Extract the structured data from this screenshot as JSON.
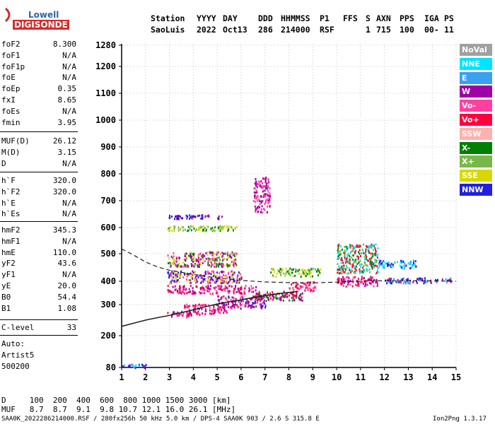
{
  "logo": {
    "line1": "Lowell",
    "line2": "DIGISONDE"
  },
  "header": {
    "labels": [
      "Station",
      "YYYY",
      "DAY",
      "DDD",
      "HHMMSS",
      "P1",
      "FFS",
      "S",
      "AXN",
      "PPS",
      "IGA",
      "PS"
    ],
    "values": [
      "SaoLuis",
      "2022",
      "Oct13",
      "286",
      "214000",
      "RSF",
      "",
      "1",
      "715",
      "100",
      "00-",
      "11"
    ]
  },
  "params": {
    "group1": [
      {
        "name": "foF2",
        "value": "8.300"
      },
      {
        "name": "foF1",
        "value": "N/A"
      },
      {
        "name": "foF1p",
        "value": "N/A"
      },
      {
        "name": "foE",
        "value": "N/A"
      },
      {
        "name": "foEp",
        "value": "0.35"
      },
      {
        "name": "fxI",
        "value": "8.65"
      },
      {
        "name": "foEs",
        "value": "N/A"
      },
      {
        "name": "fmin",
        "value": "3.95"
      }
    ],
    "group2": [
      {
        "name": "MUF(D)",
        "value": "26.12"
      },
      {
        "name": "M(D)",
        "value": "3.15"
      },
      {
        "name": "D",
        "value": "N/A"
      }
    ],
    "group3": [
      {
        "name": "h`F",
        "value": "320.0"
      },
      {
        "name": "h`F2",
        "value": "320.0"
      },
      {
        "name": "h`E",
        "value": "N/A"
      },
      {
        "name": "h`Es",
        "value": "N/A"
      }
    ],
    "group4": [
      {
        "name": "hmF2",
        "value": "345.3"
      },
      {
        "name": "hmF1",
        "value": "N/A"
      },
      {
        "name": "hmE",
        "value": "110.0"
      },
      {
        "name": "yF2",
        "value": "43.6"
      },
      {
        "name": "yF1",
        "value": "N/A"
      },
      {
        "name": "yE",
        "value": "20.0"
      },
      {
        "name": "B0",
        "value": "54.4"
      },
      {
        "name": "B1",
        "value": "1.08"
      }
    ],
    "clevel": {
      "name": "C-level",
      "value": "33"
    },
    "scaling": [
      "Auto:",
      "Artist5",
      "500200"
    ]
  },
  "legend": [
    {
      "label": "NoVal",
      "color": "#a0a0a0"
    },
    {
      "label": "NNE",
      "color": "#00e5ff"
    },
    {
      "label": "E",
      "color": "#3aa0f0"
    },
    {
      "label": "W",
      "color": "#a000a8"
    },
    {
      "label": "Vo-",
      "color": "#ff40a0"
    },
    {
      "label": "Vo+",
      "color": "#ff0040"
    },
    {
      "label": "SSW",
      "color": "#ffb0b0"
    },
    {
      "label": "X-",
      "color": "#008000"
    },
    {
      "label": "X+",
      "color": "#78b848"
    },
    {
      "label": "SSE",
      "color": "#d8d800"
    },
    {
      "label": "NNW",
      "color": "#2020e0"
    }
  ],
  "chart_data": {
    "type": "scatter",
    "xlim": [
      1,
      15
    ],
    "x_ticks": [
      1,
      2,
      3,
      4,
      5,
      6,
      7,
      8,
      9,
      10,
      11,
      12,
      13,
      14,
      15
    ],
    "y_scale": "nonlinear (higher resolution below 500 km)",
    "y_ticks": [
      80,
      200,
      300,
      400,
      500,
      600,
      700,
      800,
      900,
      1000,
      1100,
      1200,
      1280
    ],
    "grid": "dotted",
    "traces": {
      "x_trace": [
        [
          1.0,
          230
        ],
        [
          1.5,
          240
        ],
        [
          2.0,
          250
        ],
        [
          2.5,
          258
        ],
        [
          3.0,
          265
        ],
        [
          3.5,
          274
        ],
        [
          4.0,
          283
        ],
        [
          4.5,
          293
        ],
        [
          5.0,
          302
        ],
        [
          5.5,
          312
        ],
        [
          6.0,
          320
        ],
        [
          6.5,
          330
        ],
        [
          7.0,
          338
        ],
        [
          7.5,
          346
        ],
        [
          8.0,
          352
        ],
        [
          8.4,
          356
        ]
      ],
      "dashed_trace": [
        [
          1.0,
          518
        ],
        [
          1.5,
          495
        ],
        [
          2.0,
          470
        ],
        [
          2.5,
          452
        ],
        [
          3.0,
          440
        ],
        [
          4.0,
          425
        ],
        [
          5.0,
          412
        ],
        [
          6.0,
          403
        ],
        [
          7.0,
          397
        ],
        [
          8.0,
          394
        ],
        [
          9.0,
          393
        ],
        [
          10.0,
          396
        ],
        [
          11.0,
          400
        ],
        [
          12.0,
          402
        ],
        [
          13.0,
          402
        ],
        [
          14.0,
          401
        ],
        [
          15.0,
          400
        ]
      ]
    },
    "echo_clusters": [
      {
        "x": [
          2.9,
          3.9
        ],
        "y": [
          262,
          282
        ],
        "palette": [
          "#ff0040",
          "#ff40a0",
          "#a000a8"
        ]
      },
      {
        "x": [
          3.6,
          5.4
        ],
        "y": [
          270,
          305
        ],
        "palette": [
          "#ff0040",
          "#a000a8",
          "#ff40a0"
        ]
      },
      {
        "x": [
          5.0,
          7.0
        ],
        "y": [
          290,
          340
        ],
        "palette": [
          "#ff0040",
          "#a000a8",
          "#ff40a0",
          "#2020e0"
        ]
      },
      {
        "x": [
          6.5,
          8.6
        ],
        "y": [
          320,
          360
        ],
        "palette": [
          "#ff0040",
          "#a000a8",
          "#008000"
        ]
      },
      {
        "x": [
          2.9,
          6.6
        ],
        "y": [
          350,
          385
        ],
        "palette": [
          "#ff0040",
          "#ff40a0",
          "#a000a8"
        ]
      },
      {
        "x": [
          2.9,
          6.0
        ],
        "y": [
          395,
          440
        ],
        "palette": [
          "#a000a8",
          "#2020e0",
          "#ff40a0",
          "#d8d800"
        ]
      },
      {
        "x": [
          2.9,
          5.8
        ],
        "y": [
          455,
          510
        ],
        "palette": [
          "#a000a8",
          "#d8d800",
          "#ff40a0",
          "#008000"
        ]
      },
      {
        "x": [
          2.9,
          5.8
        ],
        "y": [
          590,
          610
        ],
        "palette": [
          "#d8d800",
          "#008000",
          "#78b848"
        ]
      },
      {
        "x": [
          2.9,
          5.3
        ],
        "y": [
          635,
          650
        ],
        "palette": [
          "#a000a8",
          "#2020e0"
        ]
      },
      {
        "x": [
          6.5,
          7.2
        ],
        "y": [
          660,
          790
        ],
        "palette": [
          "#a000a8",
          "#ff40a0"
        ]
      },
      {
        "x": [
          7.2,
          9.3
        ],
        "y": [
          420,
          450
        ],
        "palette": [
          "#d8d800",
          "#78b848",
          "#008000"
        ]
      },
      {
        "x": [
          8.0,
          9.1
        ],
        "y": [
          360,
          400
        ],
        "palette": [
          "#ff0040",
          "#ff40a0"
        ]
      },
      {
        "x": [
          10.0,
          11.7
        ],
        "y": [
          430,
          540
        ],
        "palette": [
          "#008000",
          "#78b848",
          "#ff0040",
          "#00e5ff"
        ]
      },
      {
        "x": [
          10.0,
          11.7
        ],
        "y": [
          380,
          420
        ],
        "palette": [
          "#ff0040",
          "#ff40a0",
          "#a000a8"
        ]
      },
      {
        "x": [
          11.7,
          13.3
        ],
        "y": [
          450,
          480
        ],
        "palette": [
          "#00e5ff",
          "#3aa0f0",
          "#2020e0"
        ]
      },
      {
        "x": [
          12.0,
          14.8
        ],
        "y": [
          395,
          415
        ],
        "palette": [
          "#3aa0f0",
          "#2020e0",
          "#a000a8"
        ]
      },
      {
        "x": [
          1.0,
          2.0
        ],
        "y": [
          80,
          95
        ],
        "palette": [
          "#2020e0",
          "#a000a8",
          "#00e5ff"
        ]
      }
    ]
  },
  "footer": {
    "d_row": "D     100  200  400  600  800 1000 1500 3000 [km]",
    "muf_row": "MUF   8.7  8.7  9.1  9.8 10.7 12.1 16.0 26.1 [MHz]",
    "file_line": "SAA0K_2022286214000.RSF / 280fx256h 50 kHz 5.0 km / DPS-4 SAA0K 903 / 2.6 S 315.8 E",
    "version": "Ion2Png 1.3.17"
  }
}
